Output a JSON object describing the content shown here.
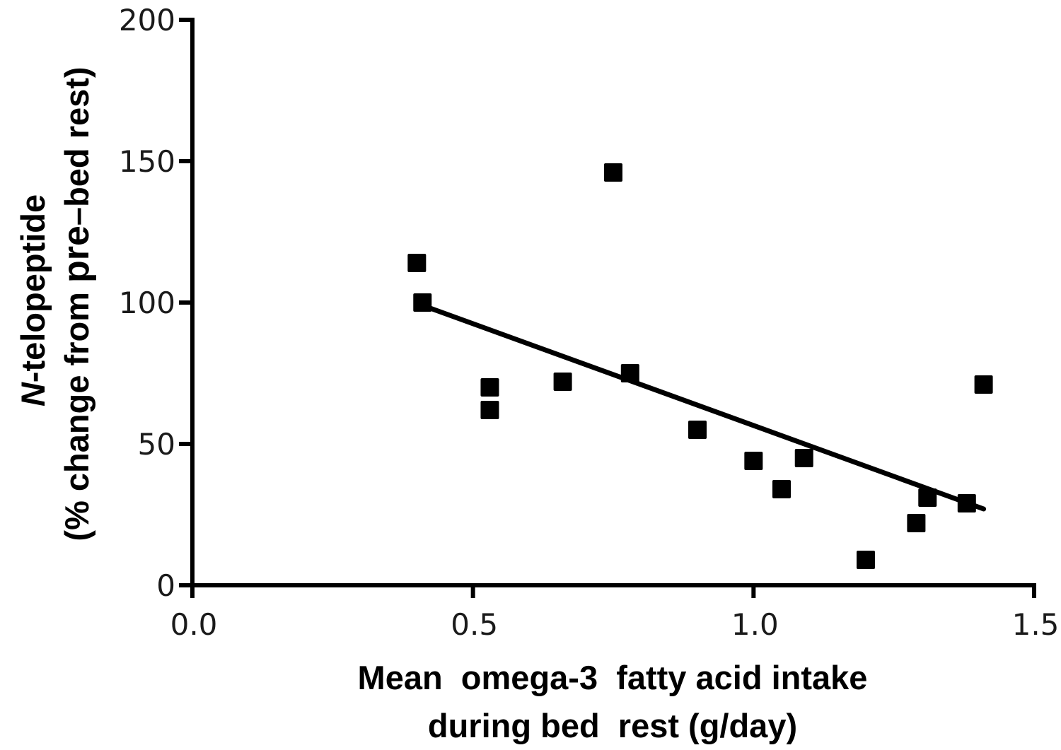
{
  "chart_data": {
    "type": "scatter",
    "title": "",
    "xlabel": [
      "Mean  omega-3  fatty acid intake",
      "during bed  rest (g/day)"
    ],
    "ylabel": {
      "line1_italic": "N",
      "line1_rest": "-telopeptide",
      "line2_prefix": "(% change from ",
      "line2_highlight": "pre",
      "line2_suffix": "–bed rest)"
    },
    "xlim": [
      0,
      1.5
    ],
    "ylim": [
      0,
      200
    ],
    "xticks": [
      0.0,
      0.5,
      1.0,
      1.5
    ],
    "xtick_labels": [
      "0.0",
      "0.5",
      "1.0",
      "1.5"
    ],
    "yticks": [
      0,
      50,
      100,
      150,
      200
    ],
    "ytick_labels": [
      "0",
      "50",
      "100",
      "150",
      "200"
    ],
    "grid": false,
    "marker": "square",
    "color": "#000000",
    "points": [
      {
        "x": 0.4,
        "y": 114
      },
      {
        "x": 0.41,
        "y": 100
      },
      {
        "x": 0.53,
        "y": 70
      },
      {
        "x": 0.53,
        "y": 62
      },
      {
        "x": 0.66,
        "y": 72
      },
      {
        "x": 0.75,
        "y": 146
      },
      {
        "x": 0.78,
        "y": 75
      },
      {
        "x": 0.9,
        "y": 55
      },
      {
        "x": 1.0,
        "y": 44
      },
      {
        "x": 1.05,
        "y": 34
      },
      {
        "x": 1.09,
        "y": 45
      },
      {
        "x": 1.2,
        "y": 9
      },
      {
        "x": 1.29,
        "y": 22
      },
      {
        "x": 1.31,
        "y": 31
      },
      {
        "x": 1.38,
        "y": 29
      },
      {
        "x": 1.41,
        "y": 71
      }
    ],
    "regression_line": {
      "x": [
        0.41,
        1.41
      ],
      "y": [
        99,
        27
      ]
    }
  }
}
